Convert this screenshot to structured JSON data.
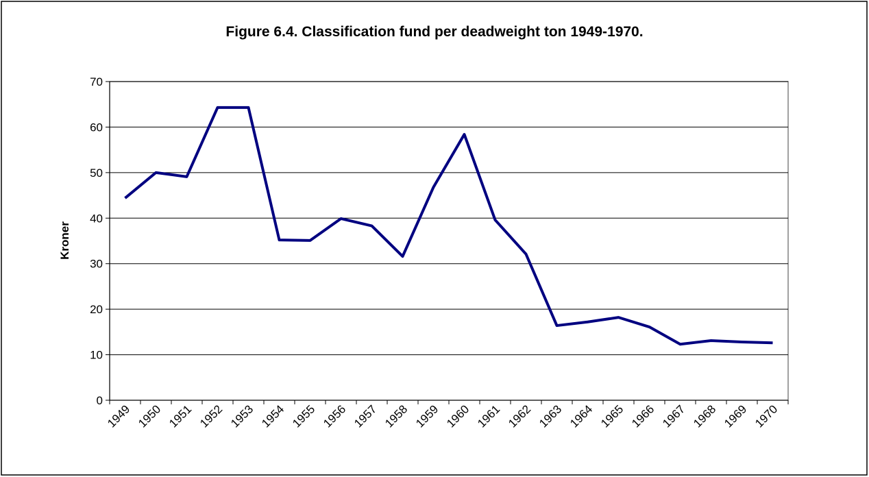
{
  "chart_data": {
    "type": "line",
    "title": "Figure 6.4. Classification fund per deadweight ton 1949-1970.",
    "y_label": "Kroner",
    "categories": [
      "1949",
      "1950",
      "1951",
      "1952",
      "1953",
      "1954",
      "1955",
      "1956",
      "1957",
      "1958",
      "1959",
      "1960",
      "1961",
      "1962",
      "1963",
      "1964",
      "1965",
      "1966",
      "1967",
      "1968",
      "1969",
      "1970"
    ],
    "series": [
      {
        "name": "Kroner",
        "color": "#000080",
        "values": [
          44.4,
          50,
          49.1,
          64.3,
          64.3,
          35.2,
          35.1,
          39.9,
          38.3,
          31.6,
          46.8,
          58.4,
          39.6,
          32.1,
          16.4,
          17.2,
          18.2,
          16.1,
          12.3,
          13.1,
          12.8,
          12.6
        ]
      }
    ],
    "ylim": [
      0,
      70
    ],
    "yticks": [
      0,
      10,
      20,
      30,
      40,
      50,
      60,
      70
    ],
    "grid": true
  }
}
